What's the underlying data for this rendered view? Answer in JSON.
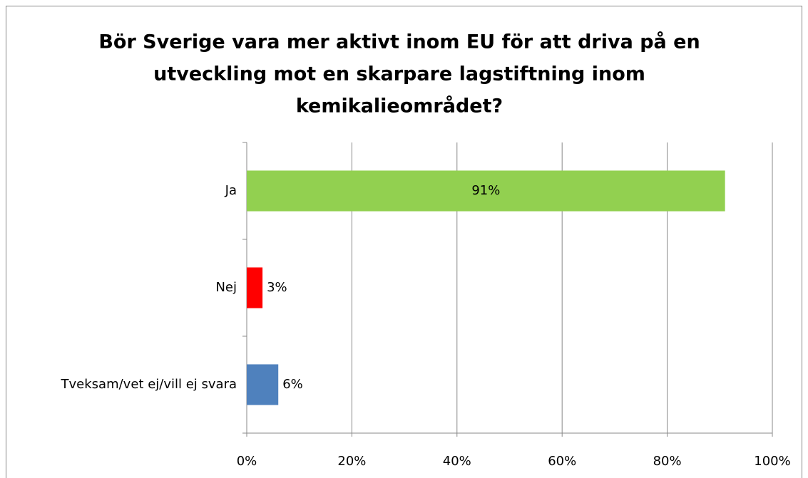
{
  "chart_data": {
    "type": "bar",
    "orientation": "horizontal",
    "title": [
      "Bör Sverige vara mer aktivt inom EU för att driva på en",
      "utveckling mot en skarpare lagstiftning inom",
      "kemikalieområdet?"
    ],
    "categories": [
      "Ja",
      "Nej",
      "Tveksam/vet ej/vill ej svara"
    ],
    "values": [
      91,
      3,
      6
    ],
    "value_labels": [
      "91%",
      "3%",
      "6%"
    ],
    "colors": [
      "#92d050",
      "#ff0000",
      "#4f81bd"
    ],
    "xlim": [
      0,
      100
    ],
    "xticks": [
      {
        "value": 0,
        "label": "0%"
      },
      {
        "value": 20,
        "label": "20%"
      },
      {
        "value": 40,
        "label": "40%"
      },
      {
        "value": 60,
        "label": "60%"
      },
      {
        "value": 80,
        "label": "80%"
      },
      {
        "value": 100,
        "label": "100%"
      }
    ],
    "grid": true
  }
}
